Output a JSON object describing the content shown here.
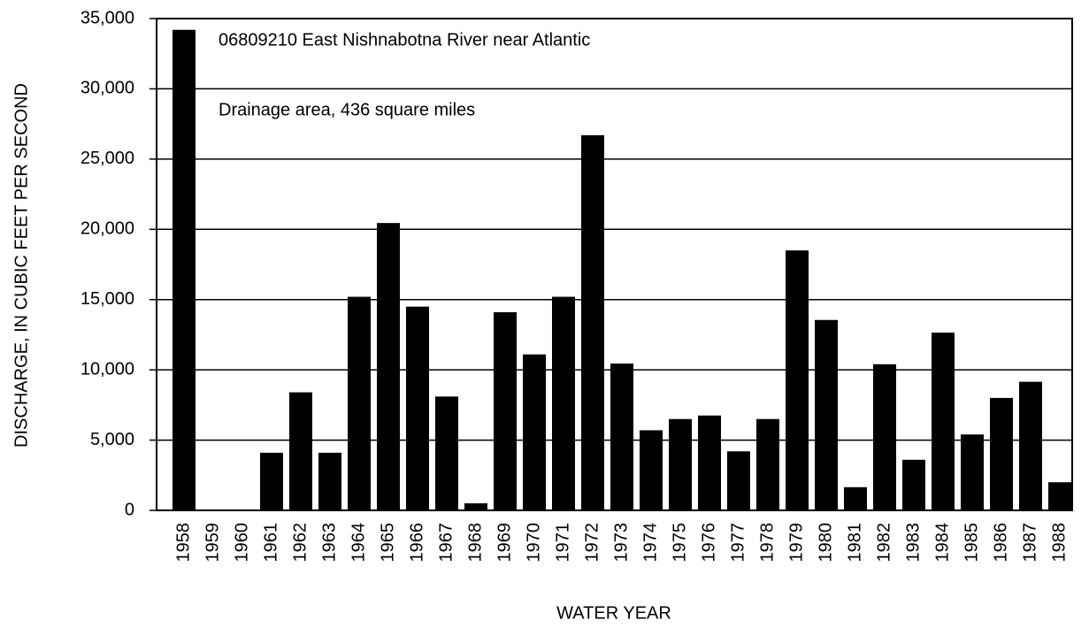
{
  "chart_data": {
    "type": "bar",
    "xlabel": "WATER YEAR",
    "ylabel": "DISCHARGE, IN CUBIC FEET PER SECOND",
    "annotations": [
      "06809210 East Nishnabotna River near Atlantic",
      "Drainage area,  436 square miles"
    ],
    "categories": [
      "1958",
      "1959",
      "1960",
      "1961",
      "1962",
      "1963",
      "1964",
      "1965",
      "1966",
      "1967",
      "1968",
      "1969",
      "1970",
      "1971",
      "1972",
      "1973",
      "1974",
      "1975",
      "1976",
      "1977",
      "1978",
      "1979",
      "1980",
      "1981",
      "1982",
      "1983",
      "1984",
      "1985",
      "1986",
      "1987",
      "1988"
    ],
    "values": [
      34200,
      null,
      null,
      4100,
      8400,
      4100,
      15200,
      20450,
      14500,
      8100,
      500,
      14100,
      11100,
      15200,
      26700,
      10450,
      5700,
      6500,
      6750,
      4200,
      6500,
      18500,
      13550,
      1650,
      10400,
      3600,
      12650,
      5400,
      8000,
      9150,
      2000
    ],
    "color": "#000000",
    "ylim": [
      0,
      35000
    ],
    "yticks": [
      0,
      {
        "value": 5000,
        "label": "5,000"
      },
      {
        "value": 10000,
        "label": "10,000"
      },
      {
        "value": 15000,
        "label": "15,000"
      },
      {
        "value": 20000,
        "label": "20,000"
      },
      {
        "value": 25000,
        "label": "25,000"
      },
      {
        "value": 30000,
        "label": "30,000"
      },
      {
        "value": 35000,
        "label": "35,000"
      }
    ],
    "grid": true
  }
}
